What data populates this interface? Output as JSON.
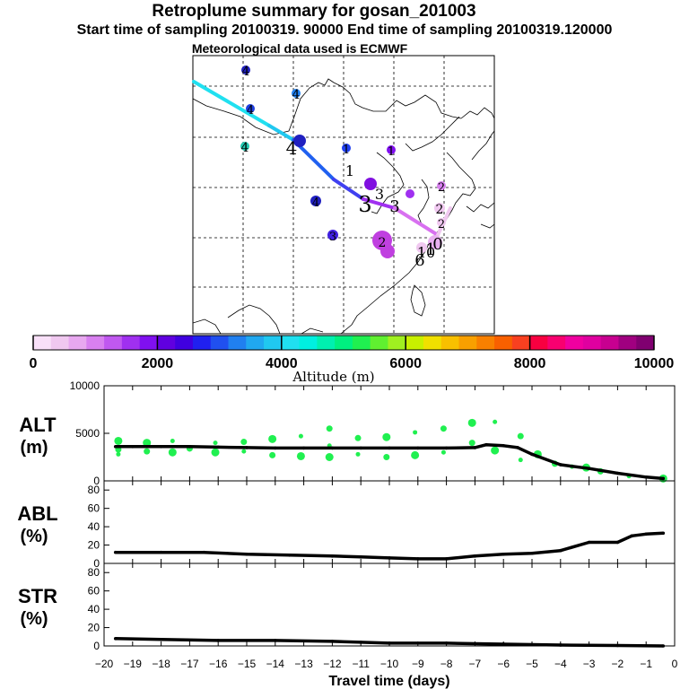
{
  "header": {
    "title": "Retroplume summary for gosan_201003",
    "sampling_line": "Start time of sampling 20100319. 90000     End time of sampling 20100319.120000",
    "met_line": "Meteorological data used is ECMWF"
  },
  "colorbar": {
    "label": "Altitude (m)",
    "ticks": [
      "0",
      "2000",
      "4000",
      "6000",
      "8000",
      "10000"
    ],
    "range": [
      0,
      10000
    ],
    "colors": [
      "#f8e0f8",
      "#f0c8f0",
      "#e8a8f0",
      "#d880f0",
      "#c058f0",
      "#a030f0",
      "#8010f0",
      "#6000e0",
      "#4000e0",
      "#2020f0",
      "#2050f0",
      "#2080f0",
      "#20a8f0",
      "#20c8f0",
      "#20e0f0",
      "#00f0e0",
      "#00f0b0",
      "#00f080",
      "#20f050",
      "#60f030",
      "#a0f020",
      "#c8f000",
      "#f0e000",
      "#f8c000",
      "#f8a000",
      "#f88000",
      "#f86000",
      "#f84020",
      "#f80040",
      "#f80070",
      "#f000a0",
      "#e000a0",
      "#c80090",
      "#a00080",
      "#800070"
    ]
  },
  "map": {
    "labels": [
      "4",
      "4",
      "4",
      "4",
      "4",
      "4",
      "3",
      "3",
      "3",
      "3",
      "2",
      "2",
      "2",
      "2",
      "1",
      "1",
      "6",
      "1",
      "0",
      "10",
      "1"
    ]
  },
  "chart_data": [
    {
      "type": "line",
      "name": "ALT",
      "ylabel": "ALT",
      "yunit": "(m)",
      "ylim": [
        0,
        10000
      ],
      "yticks": [
        "0",
        "5000",
        "10000"
      ],
      "x": [
        -19.6,
        -19,
        -18,
        -17,
        -16,
        -15,
        -14,
        -13,
        -12,
        -11,
        -10,
        -9,
        -8,
        -7,
        -6.6,
        -6,
        -5.5,
        -5,
        -4,
        -3,
        -2,
        -1,
        -0.4
      ],
      "values": [
        3600,
        3600,
        3600,
        3600,
        3550,
        3500,
        3450,
        3450,
        3450,
        3450,
        3450,
        3450,
        3450,
        3500,
        3800,
        3700,
        3500,
        2800,
        1700,
        1300,
        800,
        400,
        250
      ],
      "scatter_x": [
        -19.5,
        -19.5,
        -19.5,
        -18.5,
        -18.5,
        -17.6,
        -17.6,
        -17,
        -16.1,
        -16.1,
        -15.1,
        -15.1,
        -14.1,
        -14.1,
        -13.1,
        -13.1,
        -12.1,
        -12.1,
        -12.1,
        -11.1,
        -11.1,
        -10.1,
        -10.1,
        -9.1,
        -9.1,
        -8.1,
        -8.1,
        -7.1,
        -7.1,
        -6.3,
        -6.3,
        -5.4,
        -5.4,
        -4.8,
        -4.2,
        -3.6,
        -3.1,
        -2.6,
        -1.6,
        -0.4
      ],
      "scatter_y": [
        4200,
        3300,
        2800,
        4000,
        3100,
        4200,
        3000,
        3400,
        4000,
        3000,
        4100,
        3100,
        4400,
        2700,
        4700,
        2600,
        5500,
        3700,
        2500,
        4500,
        2800,
        4600,
        2500,
        5100,
        2700,
        5500,
        3000,
        6100,
        4000,
        6200,
        3200,
        4700,
        2200,
        2800,
        1800,
        1500,
        1400,
        1000,
        500,
        250
      ]
    },
    {
      "type": "line",
      "name": "ABL",
      "ylabel": "ABL",
      "yunit": "(%)",
      "ylim": [
        0,
        90
      ],
      "yticks": [
        "0",
        "20",
        "40",
        "60",
        "80"
      ],
      "x": [
        -19.6,
        -18,
        -16.5,
        -15,
        -13.5,
        -12,
        -11,
        -10,
        -9,
        -8,
        -7,
        -6,
        -5,
        -4,
        -3,
        -2,
        -1.5,
        -1,
        -0.4
      ],
      "values": [
        12,
        12,
        12,
        10,
        9,
        8,
        7,
        6,
        5,
        5,
        8,
        10,
        11,
        14,
        23,
        23,
        30,
        32,
        33
      ]
    },
    {
      "type": "line",
      "name": "STR",
      "ylabel": "STR",
      "yunit": "(%)",
      "ylim": [
        0,
        90
      ],
      "yticks": [
        "0",
        "20",
        "40",
        "60",
        "80"
      ],
      "x": [
        -19.6,
        -18,
        -16,
        -14,
        -12,
        -11,
        -10,
        -8,
        -6,
        -4,
        -2,
        -0.4
      ],
      "values": [
        8,
        7,
        6,
        6,
        5,
        4,
        3,
        3,
        2,
        1,
        0.5,
        0
      ],
      "xlabel": "Travel time (days)",
      "xlim": [
        -20,
        0
      ],
      "xticks": [
        "−20",
        "−19",
        "−18",
        "−17",
        "−16",
        "−15",
        "−14",
        "−13",
        "−12",
        "−11",
        "−10",
        "−9",
        "−8",
        "−7",
        "−6",
        "−5",
        "−4",
        "−3",
        "−2",
        "−1",
        "0"
      ]
    }
  ]
}
